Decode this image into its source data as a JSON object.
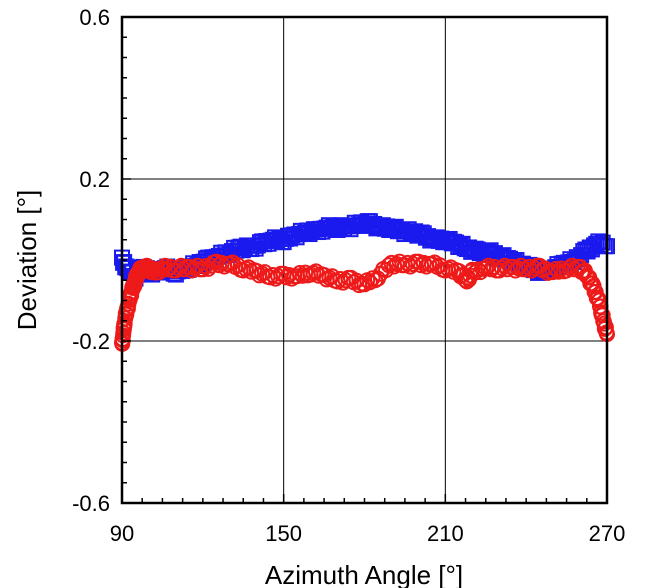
{
  "chart_data": {
    "type": "scatter",
    "title": "",
    "xlabel": "Azimuth Angle [°]",
    "ylabel": "Deviation [°]",
    "xlim": [
      90,
      270
    ],
    "ylim": [
      -0.6,
      0.6
    ],
    "x_ticks": [
      90,
      150,
      210,
      270
    ],
    "y_ticks": [
      -0.6,
      -0.2,
      0.2,
      0.6
    ],
    "x_tick_labels": [
      "90",
      "150",
      "210",
      "270"
    ],
    "y_tick_labels": [
      "-0.6",
      "-0.2",
      "0.2",
      "0.6"
    ],
    "grid": true,
    "legend": "none",
    "series": [
      {
        "marker": "square",
        "color": "#1a1aee",
        "x": [
          90,
          92,
          95,
          98,
          100,
          103,
          106,
          110,
          114,
          118,
          122,
          126,
          130,
          134,
          138,
          142,
          146,
          150,
          154,
          158,
          162,
          166,
          170,
          174,
          178,
          182,
          186,
          190,
          194,
          198,
          202,
          206,
          210,
          214,
          218,
          222,
          226,
          230,
          234,
          238,
          242,
          246,
          250,
          254,
          258,
          262,
          266,
          270
        ],
        "y": [
          0.0,
          -0.02,
          -0.04,
          -0.02,
          -0.03,
          -0.03,
          -0.02,
          -0.03,
          -0.02,
          -0.01,
          0.0,
          0.01,
          0.02,
          0.03,
          0.03,
          0.04,
          0.05,
          0.05,
          0.06,
          0.07,
          0.07,
          0.08,
          0.08,
          0.08,
          0.09,
          0.09,
          0.08,
          0.08,
          0.07,
          0.07,
          0.06,
          0.05,
          0.05,
          0.04,
          0.03,
          0.02,
          0.02,
          0.01,
          0.0,
          -0.01,
          -0.02,
          -0.03,
          -0.02,
          -0.01,
          0.0,
          0.02,
          0.04,
          0.04
        ]
      },
      {
        "marker": "circle",
        "color": "#ee1a1a",
        "x": [
          90,
          90.5,
          91,
          92,
          93,
          94,
          95,
          96,
          98,
          100,
          102,
          105,
          110,
          115,
          120,
          125,
          130,
          135,
          140,
          145,
          150,
          155,
          160,
          165,
          170,
          175,
          180,
          185,
          190,
          195,
          200,
          205,
          210,
          215,
          218,
          220,
          225,
          230,
          235,
          240,
          245,
          250,
          255,
          260,
          263,
          265,
          267,
          268,
          269,
          270
        ],
        "y": [
          -0.21,
          -0.18,
          -0.15,
          -0.12,
          -0.09,
          -0.07,
          -0.05,
          -0.03,
          -0.02,
          -0.02,
          -0.03,
          -0.02,
          -0.02,
          -0.02,
          -0.02,
          -0.01,
          -0.01,
          -0.02,
          -0.03,
          -0.04,
          -0.04,
          -0.04,
          -0.03,
          -0.04,
          -0.05,
          -0.05,
          -0.06,
          -0.04,
          -0.01,
          -0.01,
          -0.01,
          -0.01,
          -0.02,
          -0.03,
          -0.05,
          -0.03,
          -0.02,
          -0.02,
          -0.02,
          -0.02,
          -0.02,
          -0.03,
          -0.02,
          -0.02,
          -0.04,
          -0.07,
          -0.1,
          -0.13,
          -0.16,
          -0.18
        ]
      }
    ]
  }
}
